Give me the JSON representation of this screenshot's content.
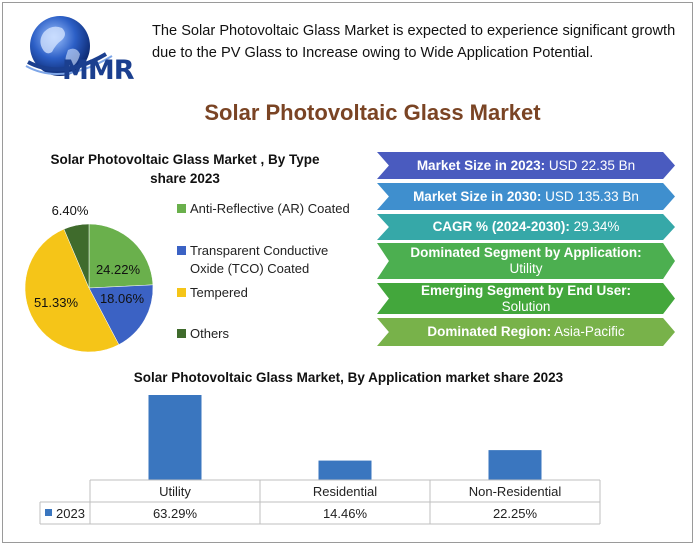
{
  "intro_text": "The Solar Photovoltaic Glass Market is expected to experience significant growth due to the PV Glass to Increase owing to Wide Application Potential.",
  "logo_text": "MMR",
  "main_title": "Solar Photovoltaic Glass Market",
  "banners": [
    {
      "key": "Market Size in 2023:",
      "value": " USD 22.35 Bn",
      "color": "#4a5bbf"
    },
    {
      "key": "Market Size in 2030:",
      "value": " USD 135.33 Bn",
      "color": "#3f8fce"
    },
    {
      "key": "CAGR % (2024-2030):",
      "value": " 29.34%",
      "color": "#36a8a8"
    },
    {
      "key": "Dominated Segment by Application:",
      "value": " Utility",
      "color": "#4caf50"
    },
    {
      "key": "Emerging Segment by End User:",
      "value": " Solution",
      "color": "#43a73c"
    },
    {
      "key": "Dominated Region:",
      "value": " Asia-Pacific",
      "color": "#78b24a"
    }
  ],
  "chart_data": [
    {
      "type": "pie",
      "title": "Solar Photovoltaic Glass Market , By Type  share  2023",
      "slices": [
        {
          "label": "Anti-Reflective (AR) Coated",
          "value": 24.22,
          "display": "24.22%",
          "color": "#6ab04c"
        },
        {
          "label": "Transparent Conductive Oxide (TCO) Coated",
          "value": 18.06,
          "display": "18.06%",
          "color": "#3b62c4"
        },
        {
          "label": "Tempered",
          "value": 51.33,
          "display": "51.33%",
          "color": "#f5c518"
        },
        {
          "label": "Others",
          "value": 6.4,
          "display": "6.40%",
          "color": "#3f6b2c"
        }
      ],
      "legend_position": "right"
    },
    {
      "type": "bar",
      "title": "Solar Photovoltaic Glass Market, By Application market share  2023",
      "categories": [
        "Utility",
        "Residential",
        "Non-Residential"
      ],
      "series": [
        {
          "name": "2023",
          "values": [
            63.29,
            14.46,
            22.25
          ],
          "display": [
            "63.29%",
            "14.46%",
            "22.25%"
          ],
          "color": "#3a76bf"
        }
      ],
      "legend_position": "bottom-left (data table)"
    }
  ]
}
